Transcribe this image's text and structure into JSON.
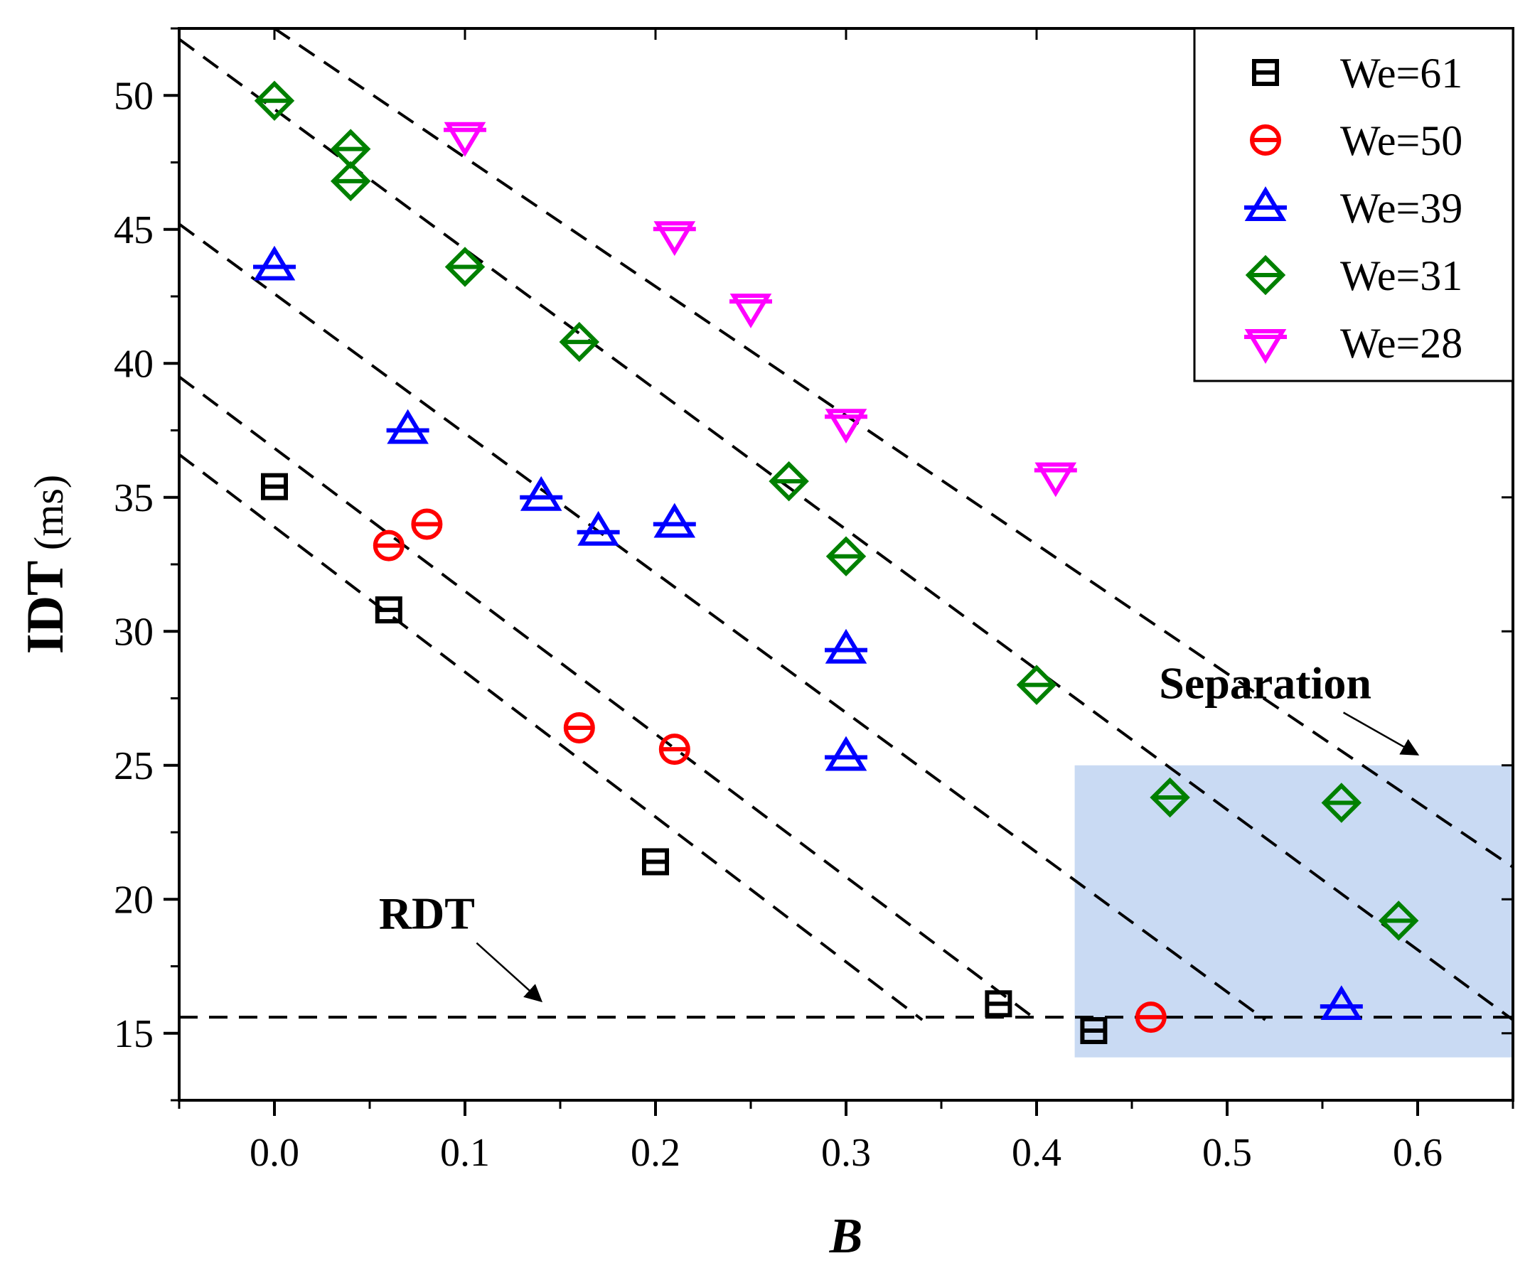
{
  "chart_data": {
    "type": "scatter",
    "xlabel": "B",
    "ylabel_main": "IDT",
    "ylabel_unit": " (ms)",
    "xlim": [
      -0.05,
      0.65
    ],
    "ylim": [
      12.5,
      52.5
    ],
    "x_ticks": [
      0.0,
      0.1,
      0.2,
      0.3,
      0.4,
      0.5,
      0.6
    ],
    "x_tick_labels": [
      "0.0",
      "0.1",
      "0.2",
      "0.3",
      "0.4",
      "0.5",
      "0.6"
    ],
    "y_ticks": [
      15,
      20,
      25,
      30,
      35,
      40,
      45,
      50
    ],
    "y_tick_labels": [
      "15",
      "20",
      "25",
      "30",
      "35",
      "40",
      "45",
      "50"
    ],
    "grid": false,
    "legend_position": "top-right",
    "series": [
      {
        "name": "We=61",
        "color": "#000000",
        "marker": "square",
        "x": [
          0.0,
          0.06,
          0.2,
          0.38,
          0.43
        ],
        "y": [
          35.4,
          30.8,
          21.4,
          16.1,
          15.1
        ]
      },
      {
        "name": "We=50",
        "color": "#ff0000",
        "marker": "circle",
        "x": [
          0.06,
          0.08,
          0.16,
          0.21,
          0.46
        ],
        "y": [
          33.2,
          34.0,
          26.4,
          25.6,
          15.6
        ]
      },
      {
        "name": "We=39",
        "color": "#0000ff",
        "marker": "triangle-up",
        "x": [
          0.0,
          0.07,
          0.14,
          0.17,
          0.21,
          0.3,
          0.3,
          0.56
        ],
        "y": [
          43.6,
          37.5,
          35.0,
          33.7,
          34.0,
          29.3,
          25.3,
          16.0
        ]
      },
      {
        "name": "We=31",
        "color": "#008000",
        "marker": "diamond",
        "x": [
          0.0,
          0.04,
          0.04,
          0.1,
          0.16,
          0.27,
          0.3,
          0.4,
          0.47,
          0.56,
          0.59
        ],
        "y": [
          49.8,
          48.0,
          46.8,
          43.6,
          40.8,
          35.6,
          32.8,
          28.0,
          23.8,
          23.6,
          19.2
        ]
      },
      {
        "name": "We=28",
        "color": "#ff00ff",
        "marker": "triangle-down",
        "x": [
          0.1,
          0.21,
          0.25,
          0.3,
          0.41
        ],
        "y": [
          48.5,
          44.8,
          42.1,
          37.8,
          35.8
        ]
      }
    ],
    "trend_lines": [
      {
        "x": [
          -0.05,
          0.34
        ],
        "y": [
          36.6,
          15.5
        ]
      },
      {
        "x": [
          -0.05,
          0.4
        ],
        "y": [
          39.5,
          15.5
        ]
      },
      {
        "x": [
          -0.05,
          0.52
        ],
        "y": [
          45.2,
          15.5
        ]
      },
      {
        "x": [
          -0.05,
          0.65
        ],
        "y": [
          52.1,
          15.5
        ]
      },
      {
        "x": [
          0.0,
          0.65
        ],
        "y": [
          52.5,
          21.2
        ]
      }
    ],
    "reference_line": {
      "y": 15.6,
      "x": [
        -0.05,
        0.65
      ]
    },
    "highlight_region": {
      "x": [
        0.42,
        0.65
      ],
      "y": [
        14.1,
        25.0
      ],
      "color": "#c9daf3"
    },
    "annotations": [
      {
        "text": "RDT",
        "x": 0.08,
        "y": 18.9,
        "arrow_to": [
          0.14,
          16.2
        ]
      },
      {
        "text": "Separation",
        "x": 0.52,
        "y": 27.5,
        "arrow_to": [
          0.6,
          25.4
        ]
      }
    ]
  }
}
